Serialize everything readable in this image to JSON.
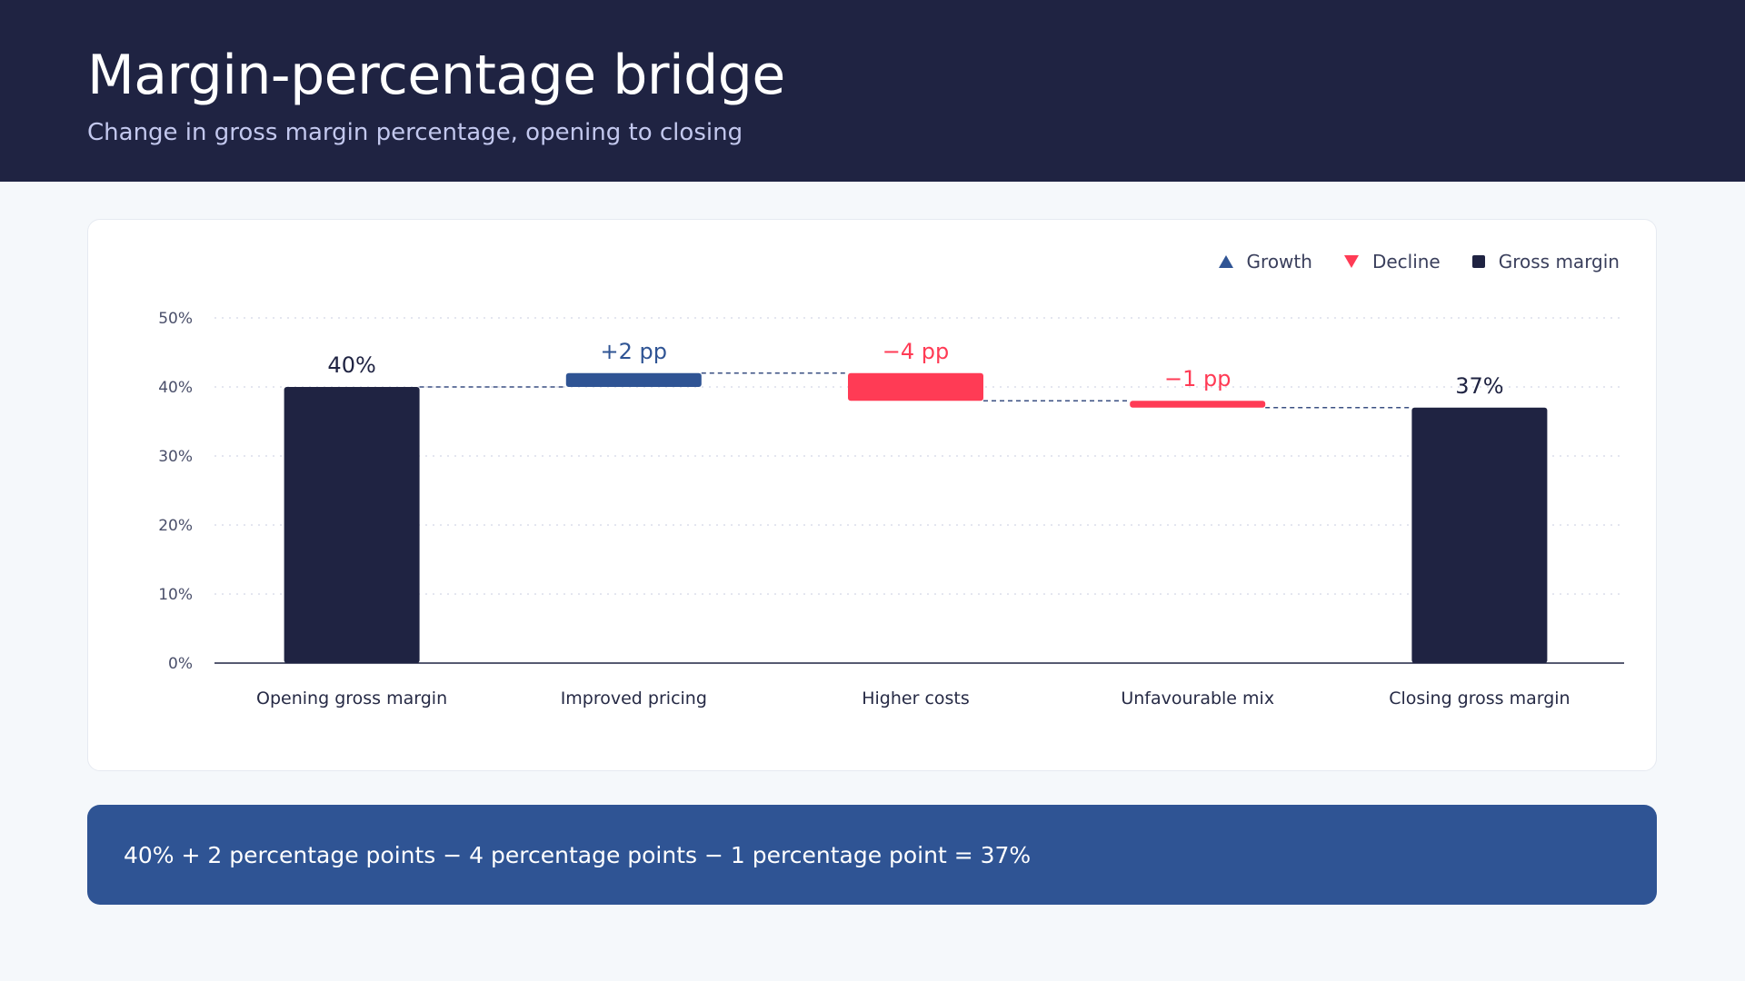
{
  "header": {
    "title": "Margin-percentage bridge",
    "subtitle": "Change in gross margin percentage, opening to closing"
  },
  "legend": {
    "growth": "Growth",
    "decline": "Decline",
    "total": "Gross margin"
  },
  "colors": {
    "header_bg": "#1f2342",
    "total": "#1f2342",
    "growth": "#2f5494",
    "decline": "#ff3b55",
    "formula_bg": "#2f5494"
  },
  "chart_data": {
    "type": "bar",
    "subtype": "waterfall",
    "categories": [
      "Opening gross margin",
      "Improved pricing",
      "Higher costs",
      "Unfavourable mix",
      "Closing gross margin"
    ],
    "steps": [
      {
        "kind": "total",
        "value": 40,
        "label": "40%"
      },
      {
        "kind": "growth",
        "value": 2,
        "label": "+2 pp"
      },
      {
        "kind": "decline",
        "value": -4,
        "label": "−4 pp"
      },
      {
        "kind": "decline",
        "value": -1,
        "label": "−1 pp"
      },
      {
        "kind": "total",
        "value": 37,
        "label": "37%"
      }
    ],
    "yticks": [
      "0%",
      "10%",
      "20%",
      "30%",
      "40%",
      "50%"
    ],
    "ylim": [
      0,
      50
    ],
    "grid": true,
    "connectors": true,
    "legend_position": "top-right"
  },
  "formula": "40% + 2 percentage points − 4 percentage points − 1 percentage point = 37%"
}
